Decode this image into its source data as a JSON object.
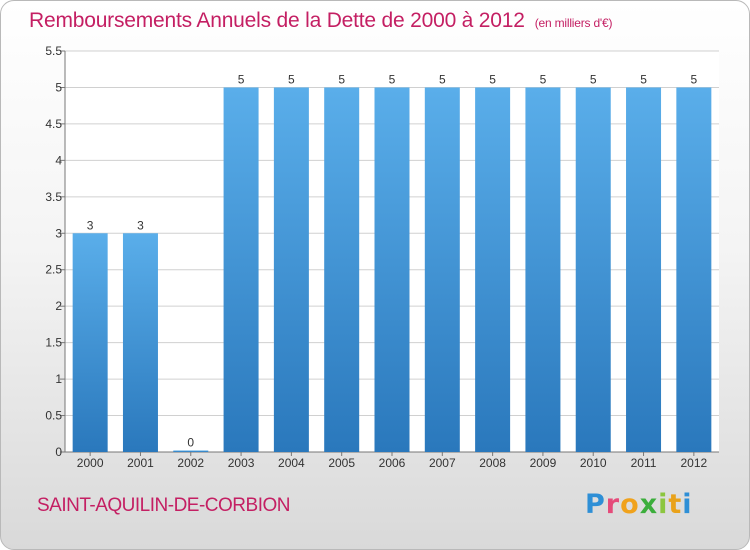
{
  "header": {
    "title": "Remboursements Annuels de la Dette de 2000 à 2012",
    "unit": "(en milliers d'€)"
  },
  "footer": {
    "commune": "SAINT-AQUILIN-DE-CORBION",
    "logo_text": "Proxiti"
  },
  "colors": {
    "title": "#c41f63",
    "bar_top": "#5aaeea",
    "bar_bottom": "#2a78bc",
    "plot_bg": "#ffffff",
    "grid": "#d0d0d0"
  },
  "chart_data": {
    "type": "bar",
    "title": "Remboursements Annuels de la Dette de 2000 à 2012",
    "subtitle": "(en milliers d'€)",
    "xlabel": "",
    "ylabel": "",
    "categories": [
      "2000",
      "2001",
      "2002",
      "2003",
      "2004",
      "2005",
      "2006",
      "2007",
      "2008",
      "2009",
      "2010",
      "2011",
      "2012"
    ],
    "values": [
      3,
      3,
      0,
      5,
      5,
      5,
      5,
      5,
      5,
      5,
      5,
      5,
      5
    ],
    "data_labels": [
      "3",
      "3",
      "0",
      "5",
      "5",
      "5",
      "5",
      "5",
      "5",
      "5",
      "5",
      "5",
      "5"
    ],
    "ylim": [
      0,
      5.5
    ],
    "yticks": [
      0,
      0.5,
      1,
      1.5,
      2,
      2.5,
      3,
      3.5,
      4,
      4.5,
      5,
      5.5
    ],
    "ytick_labels": [
      "0",
      "0.5",
      "1",
      "1.5",
      "2",
      "2.5",
      "3",
      "3.5",
      "4",
      "4.5",
      "5",
      "5.5"
    ],
    "grid": true,
    "legend": false
  }
}
